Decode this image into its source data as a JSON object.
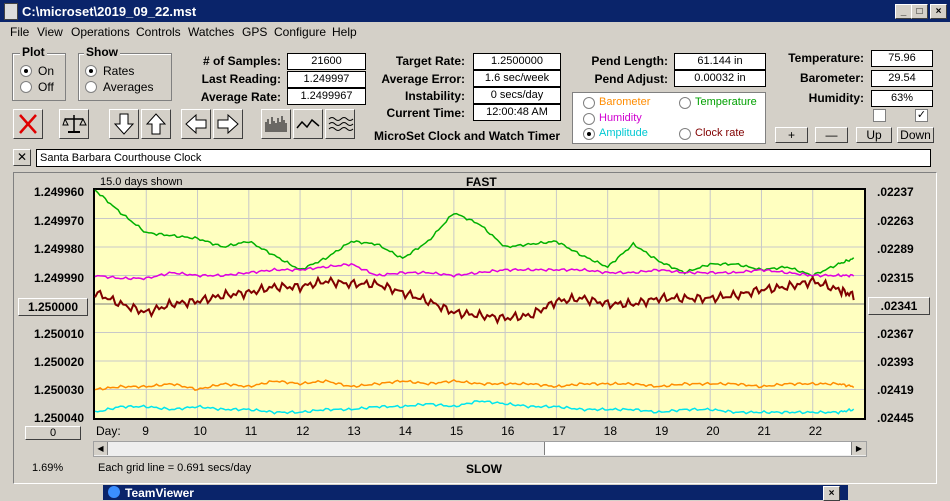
{
  "window": {
    "title": "C:\\microset\\2019_09_22.mst"
  },
  "menu": [
    "File",
    "View",
    "Operations",
    "Controls",
    "Watches",
    "GPS",
    "Configure",
    "Help"
  ],
  "plot_group": {
    "label": "Plot",
    "on": "On",
    "off": "Off",
    "selected": "On"
  },
  "show_group": {
    "label": "Show",
    "rates": "Rates",
    "averages": "Averages",
    "selected": "Rates"
  },
  "stats": {
    "samples_label": "# of Samples:",
    "samples": "21600",
    "last_reading_label": "Last Reading:",
    "last_reading": "1.249997",
    "average_rate_label": "Average Rate:",
    "average_rate": "1.2499967",
    "target_rate_label": "Target Rate:",
    "target_rate": "1.2500000",
    "average_error_label": "Average Error:",
    "average_error": "1.6 sec/week",
    "instability_label": "Instability:",
    "instability": "0 secs/day",
    "current_time_label": "Current Time:",
    "current_time": "12:00:48 AM",
    "pend_length_label": "Pend Length:",
    "pend_length": "61.144 in",
    "pend_adjust_label": "Pend Adjust:",
    "pend_adjust": "0.00032 in",
    "temperature_label": "Temperature:",
    "temperature": "75.96",
    "barometer_label": "Barometer:",
    "barometer": "29.54",
    "humidity_label": "Humidity:",
    "humidity": "63%"
  },
  "app_caption": "MicroSet Clock and Watch Timer",
  "series_select": {
    "barometer": "Barometer",
    "temperature": "Temperature",
    "humidity": "Humidity",
    "amplitude": "Amplitude",
    "clock_rate": "Clock rate",
    "selected": "Amplitude"
  },
  "adjust_buttons": {
    "plus": "+",
    "minus": "—",
    "up": "Up",
    "down": "Down"
  },
  "checkboxes": {
    "left": "",
    "right": "✓"
  },
  "clock_name": "Santa Barbara Courthouse Clock",
  "chart": {
    "days_shown": "15.0 days shown",
    "top_label": "FAST",
    "bottom_label": "SLOW",
    "grid_note": "Each grid line = 0.691 secs/day",
    "percent": "1.69%",
    "center_button": "1.250000",
    "zero_button": "0",
    "right_center_button": ".02341",
    "day_label": "Day:",
    "colors": {
      "temperature": "#00b000",
      "humidity": "#e000e0",
      "clock_rate": "#800000",
      "barometer": "#ff8c00",
      "amplitude": "#00e5ee",
      "bg": "#ffffc0"
    }
  },
  "chart_data": {
    "type": "line",
    "x_label": "Day:",
    "x": [
      8.0,
      8.5,
      9.0,
      9.5,
      10.0,
      10.5,
      11.0,
      11.5,
      12.0,
      12.5,
      13.0,
      13.5,
      14.0,
      14.5,
      15.0,
      15.5,
      16.0,
      16.5,
      17.0,
      17.5,
      18.0,
      18.5,
      19.0,
      19.5,
      20.0,
      20.5,
      21.0,
      21.5,
      22.0,
      22.5,
      22.8
    ],
    "x_ticks": [
      "9",
      "10",
      "11",
      "12",
      "13",
      "14",
      "15",
      "16",
      "17",
      "18",
      "19",
      "20",
      "21",
      "22"
    ],
    "y_left_ticks": [
      "1.249960",
      "1.249970",
      "1.249980",
      "1.249990",
      "1.250000",
      "1.250010",
      "1.250020",
      "1.250030",
      "1.250040"
    ],
    "y_left_range": [
      1.24996,
      1.25004
    ],
    "y_right_ticks": [
      ".02237",
      ".02263",
      ".02289",
      ".02315",
      ".02341",
      ".02367",
      ".02393",
      ".02419",
      ".02445"
    ],
    "series": [
      {
        "color": "#00b000",
        "values": [
          1.24996,
          1.249968,
          1.249975,
          1.249976,
          1.249977,
          1.24998,
          1.249978,
          1.249983,
          1.249988,
          1.249984,
          1.249978,
          1.249979,
          1.249984,
          1.249978,
          1.249968,
          1.249972,
          1.24998,
          1.249979,
          1.249978,
          1.249983,
          1.249987,
          1.249979,
          1.249985,
          1.249989,
          1.249986,
          1.249986,
          1.249988,
          1.249987,
          1.24999,
          1.249986,
          1.249984
        ]
      },
      {
        "color": "#e000e0",
        "values": [
          1.24999,
          1.249991,
          1.249991,
          1.249989,
          1.24999,
          1.24999,
          1.249989,
          1.249988,
          1.249988,
          1.249987,
          1.249986,
          1.24999,
          1.249989,
          1.249989,
          1.24999,
          1.249989,
          1.249988,
          1.249988,
          1.249988,
          1.249988,
          1.249989,
          1.249989,
          1.249988,
          1.249989,
          1.249989,
          1.249989,
          1.249988,
          1.249989,
          1.24999,
          1.24999,
          1.24999
        ]
      },
      {
        "color": "#800000",
        "values": [
          1.249996,
          1.25,
          1.250003,
          1.25,
          1.249999,
          1.249997,
          1.249996,
          1.249994,
          1.249994,
          1.249992,
          1.249993,
          1.249993,
          1.249996,
          1.249999,
          1.250003,
          1.250004,
          1.250005,
          1.250004,
          1.249999,
          1.249998,
          1.25,
          1.25,
          1.249998,
          1.249998,
          1.249998,
          1.249997,
          1.249995,
          1.249994,
          1.249992,
          1.249995,
          1.249997
        ]
      },
      {
        "color": "#ff8c00",
        "values": [
          1.25003,
          1.250029,
          1.250029,
          1.250028,
          1.25003,
          1.250028,
          1.250029,
          1.250027,
          1.250028,
          1.250027,
          1.250029,
          1.250028,
          1.250027,
          1.250028,
          1.250027,
          1.250028,
          1.250028,
          1.250028,
          1.250029,
          1.250028,
          1.250028,
          1.250028,
          1.250029,
          1.250028,
          1.250028,
          1.250028,
          1.250029,
          1.250028,
          1.250028,
          1.250028,
          1.250029
        ]
      },
      {
        "color": "#00e5ee",
        "values": [
          1.250038,
          1.250036,
          1.250036,
          1.250037,
          1.250036,
          1.250037,
          1.250037,
          1.250038,
          1.250038,
          1.250037,
          1.250037,
          1.250036,
          1.250036,
          1.250035,
          1.250036,
          1.250034,
          1.250035,
          1.250036,
          1.250036,
          1.250037,
          1.250037,
          1.250037,
          1.250038,
          1.250037,
          1.250037,
          1.250038,
          1.250038,
          1.250038,
          1.250038,
          1.250038,
          1.250037
        ]
      }
    ]
  },
  "taskbar": {
    "title": "TeamViewer"
  }
}
